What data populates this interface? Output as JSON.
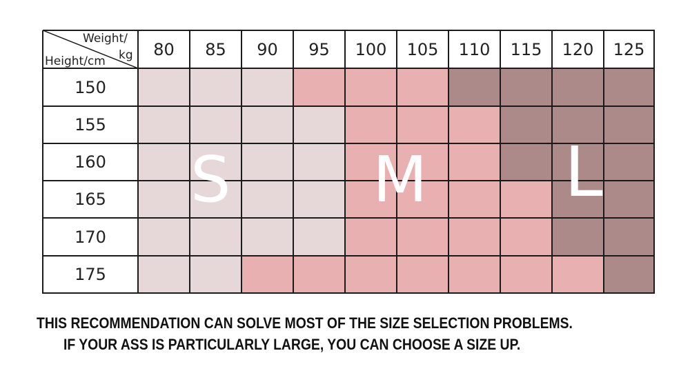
{
  "chart_data": {
    "type": "table",
    "corner": {
      "x_header_line1": "Weight/",
      "x_header_line2": "kg",
      "y_header": "Height/cm"
    },
    "weights_kg": [
      "80",
      "85",
      "90",
      "95",
      "100",
      "105",
      "110",
      "115",
      "120",
      "125"
    ],
    "heights_cm": [
      "150",
      "155",
      "160",
      "165",
      "170",
      "175"
    ],
    "sizes": [
      [
        "S",
        "S",
        "S",
        "M",
        "M",
        "M",
        "L",
        "L",
        "L",
        "L"
      ],
      [
        "S",
        "S",
        "S",
        "S",
        "M",
        "M",
        "M",
        "L",
        "L",
        "L"
      ],
      [
        "S",
        "S",
        "S",
        "S",
        "M",
        "M",
        "M",
        "L",
        "L",
        "L"
      ],
      [
        "S",
        "S",
        "S",
        "S",
        "M",
        "M",
        "M",
        "M",
        "L",
        "L"
      ],
      [
        "S",
        "S",
        "S",
        "S",
        "M",
        "M",
        "M",
        "M",
        "L",
        "L"
      ],
      [
        "S",
        "S",
        "M",
        "M",
        "M",
        "M",
        "M",
        "M",
        "M",
        "L"
      ]
    ],
    "size_letters": [
      "S",
      "M",
      "L"
    ],
    "size_colors": {
      "S": "#e6d7d8",
      "M": "#e9b0b1",
      "L": "#ad8a8a"
    }
  },
  "notes": {
    "line1": "THIS RECOMMENDATION CAN SOLVE MOST OF THE SIZE SELECTION PROBLEMS.",
    "line2": "IF YOUR ASS IS PARTICULARLY LARGE, YOU CAN CHOOSE A SIZE UP."
  }
}
